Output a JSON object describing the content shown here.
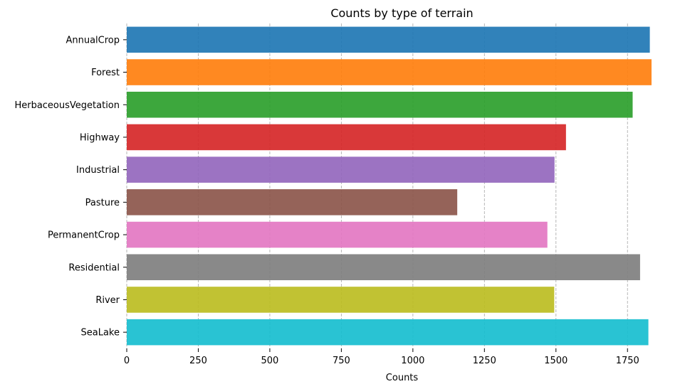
{
  "chart_data": {
    "type": "bar",
    "orientation": "horizontal",
    "title": "Counts by type of terrain",
    "xlabel": "Counts",
    "ylabel": "",
    "categories": [
      "AnnualCrop",
      "Forest",
      "HerbaceousVegetation",
      "Highway",
      "Industrial",
      "Pasture",
      "PermanentCrop",
      "Residential",
      "River",
      "SeaLake"
    ],
    "values": [
      1828,
      1834,
      1768,
      1535,
      1495,
      1155,
      1470,
      1794,
      1494,
      1823
    ],
    "colors": [
      "#1f77b4",
      "#ff7f0e",
      "#2ca02c",
      "#d62728",
      "#9467bd",
      "#8c564b",
      "#e377c2",
      "#7f7f7f",
      "#bcbd22",
      "#17becf"
    ],
    "xlim": [
      0,
      1834
    ],
    "xticks": [
      0,
      250,
      500,
      750,
      1000,
      1250,
      1500,
      1750
    ],
    "xtick_labels": [
      "0",
      "250",
      "500",
      "750",
      "1000",
      "1250",
      "1500",
      "1750"
    ],
    "grid": "x dashed",
    "legend": "none"
  }
}
